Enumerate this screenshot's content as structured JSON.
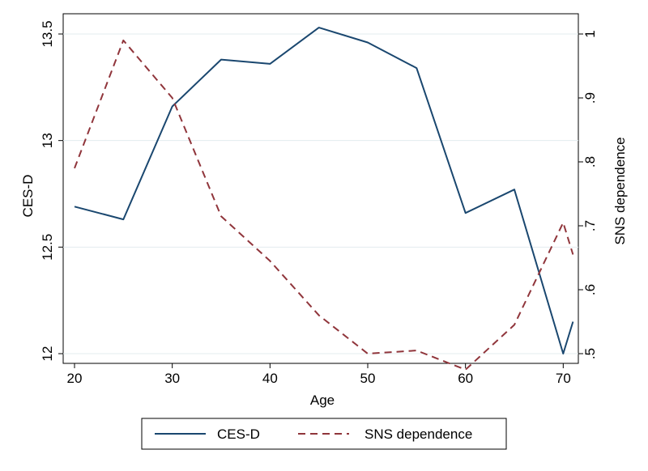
{
  "chart_data": {
    "type": "line",
    "title": "",
    "xlabel": "Age",
    "ylabel_left": "CES-D",
    "ylabel_right": "SNS dependence",
    "xlim": [
      20,
      71
    ],
    "ylim_left": [
      12,
      13.5
    ],
    "ylim_right": [
      0.5,
      1.0
    ],
    "x_ticks": [
      20,
      30,
      40,
      50,
      60,
      70
    ],
    "y_left_ticks": [
      12,
      12.5,
      13,
      13.5
    ],
    "y_left_tick_labels": [
      "12",
      "12.5",
      "13",
      "13.5"
    ],
    "y_right_ticks": [
      0.5,
      0.6,
      0.7,
      0.8,
      0.9,
      1.0
    ],
    "y_right_tick_labels": [
      ".5",
      ".6",
      ".7",
      ".8",
      ".9",
      "1"
    ],
    "grid": true,
    "legend_position": "bottom",
    "series": [
      {
        "name": "CES-D",
        "axis": "left",
        "color": "#1a476f",
        "style": "solid",
        "x": [
          20,
          25,
          30,
          35,
          40,
          45,
          50,
          55,
          60,
          65,
          70,
          71
        ],
        "values": [
          12.69,
          12.63,
          13.16,
          13.38,
          13.36,
          13.53,
          13.46,
          13.34,
          12.66,
          12.77,
          12.0,
          12.15
        ]
      },
      {
        "name": "SNS dependence",
        "axis": "right",
        "color": "#90353b",
        "style": "dashed",
        "x": [
          20,
          25,
          30,
          35,
          40,
          45,
          50,
          55,
          60,
          65,
          70,
          71
        ],
        "values": [
          0.79,
          0.99,
          0.9,
          0.715,
          0.645,
          0.56,
          0.5,
          0.505,
          0.475,
          0.545,
          0.705,
          0.655
        ]
      }
    ]
  }
}
